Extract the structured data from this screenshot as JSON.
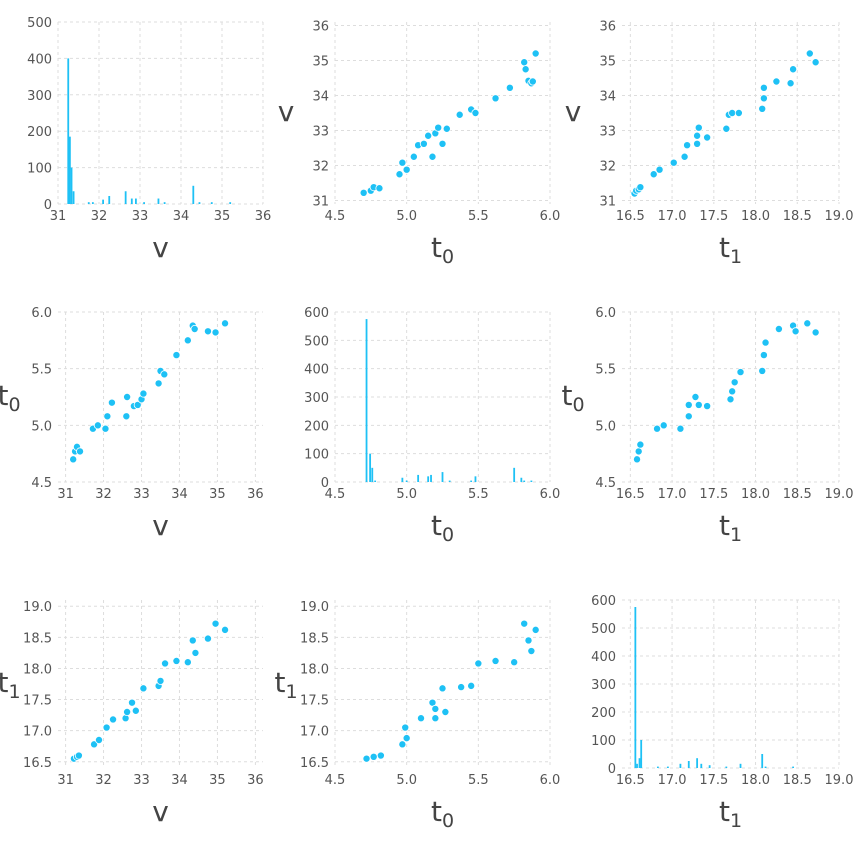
{
  "colors": {
    "series": "#1ec1f5",
    "grid": "#dddddd",
    "tick": "#555555",
    "label": "#444444"
  },
  "chart_data": [
    {
      "type": "bar",
      "row": 0,
      "col": 0,
      "xlabel": "v",
      "xlabel_sub": "",
      "ylabel": "",
      "ylabel_sub": "",
      "xlim": [
        31,
        36
      ],
      "ylim": [
        0,
        500
      ],
      "xticks": [
        31,
        32,
        33,
        34,
        35,
        36
      ],
      "xtick_labels": [
        "31",
        "32",
        "33",
        "34",
        "35",
        "36"
      ],
      "yticks": [
        0,
        100,
        200,
        300,
        400,
        500
      ],
      "ytick_labels": [
        "0",
        "100",
        "200",
        "300",
        "400",
        "500"
      ],
      "grid": true,
      "x": [
        31.25,
        31.29,
        31.33,
        31.38,
        31.75,
        31.85,
        32.1,
        32.25,
        32.65,
        32.8,
        32.9,
        33.1,
        33.45,
        33.6,
        34.3,
        34.45,
        34.75,
        35.2
      ],
      "values": [
        400,
        185,
        100,
        35,
        5,
        5,
        12,
        22,
        35,
        15,
        15,
        5,
        15,
        5,
        50,
        5,
        5,
        5
      ]
    },
    {
      "type": "scatter",
      "row": 0,
      "col": 1,
      "xlabel": "t",
      "xlabel_sub": "0",
      "ylabel": "v",
      "ylabel_sub": "",
      "xlim": [
        4.5,
        6.0
      ],
      "ylim": [
        30.9,
        36.1
      ],
      "xticks": [
        4.5,
        5.0,
        5.5,
        6.0
      ],
      "xtick_labels": [
        "4.5",
        "5.0",
        "5.5",
        "6.0"
      ],
      "yticks": [
        31,
        32,
        33,
        34,
        35,
        36
      ],
      "ytick_labels": [
        "31",
        "32",
        "33",
        "34",
        "35",
        "36"
      ],
      "grid": true,
      "x": [
        4.7,
        4.75,
        4.77,
        4.81,
        4.95,
        4.97,
        5.0,
        5.05,
        5.08,
        5.12,
        5.15,
        5.18,
        5.2,
        5.22,
        5.25,
        5.28,
        5.37,
        5.45,
        5.48,
        5.62,
        5.72,
        5.82,
        5.83,
        5.85,
        5.87,
        5.88,
        5.9
      ],
      "y": [
        31.22,
        31.28,
        31.38,
        31.35,
        31.75,
        32.08,
        31.88,
        32.25,
        32.58,
        32.62,
        32.85,
        32.25,
        32.92,
        33.08,
        32.62,
        33.05,
        33.45,
        33.6,
        33.5,
        33.92,
        34.22,
        34.95,
        34.75,
        34.42,
        34.35,
        34.4,
        35.2
      ]
    },
    {
      "type": "scatter",
      "row": 0,
      "col": 2,
      "xlabel": "t",
      "xlabel_sub": "1",
      "ylabel": "v",
      "ylabel_sub": "",
      "xlim": [
        16.4,
        19.0
      ],
      "ylim": [
        30.9,
        36.1
      ],
      "xticks": [
        16.5,
        17.0,
        17.5,
        18.0,
        18.5,
        19.0
      ],
      "xtick_labels": [
        "16.5",
        "17.0",
        "17.5",
        "18.0",
        "18.5",
        "19.0"
      ],
      "yticks": [
        31,
        32,
        33,
        34,
        35,
        36
      ],
      "ytick_labels": [
        "31",
        "32",
        "33",
        "34",
        "35",
        "36"
      ],
      "grid": true,
      "x": [
        16.55,
        16.57,
        16.6,
        16.62,
        16.78,
        16.85,
        17.02,
        17.15,
        17.18,
        17.3,
        17.3,
        17.32,
        17.42,
        17.65,
        17.68,
        17.72,
        17.8,
        18.08,
        18.1,
        18.1,
        18.25,
        18.42,
        18.45,
        18.65,
        18.72
      ],
      "y": [
        31.2,
        31.28,
        31.32,
        31.38,
        31.75,
        31.88,
        32.08,
        32.25,
        32.58,
        32.62,
        32.85,
        33.08,
        32.8,
        33.05,
        33.45,
        33.5,
        33.5,
        33.62,
        33.92,
        34.22,
        34.4,
        34.35,
        34.75,
        35.2,
        34.95
      ]
    },
    {
      "type": "scatter",
      "row": 1,
      "col": 0,
      "xlabel": "v",
      "xlabel_sub": "",
      "ylabel": "t",
      "ylabel_sub": "0",
      "xlim": [
        30.8,
        36.2
      ],
      "ylim": [
        4.5,
        6.0
      ],
      "xticks": [
        31,
        32,
        33,
        34,
        35,
        36
      ],
      "xtick_labels": [
        "31",
        "32",
        "33",
        "34",
        "35",
        "36"
      ],
      "yticks": [
        4.5,
        5.0,
        5.5,
        6.0
      ],
      "ytick_labels": [
        "4.5",
        "5.0",
        "5.5",
        "6.0"
      ],
      "grid": true,
      "x": [
        31.2,
        31.25,
        31.3,
        31.38,
        31.72,
        31.85,
        32.05,
        32.1,
        32.22,
        32.62,
        32.6,
        32.8,
        32.9,
        33.0,
        33.05,
        33.45,
        33.5,
        33.6,
        33.92,
        34.22,
        34.35,
        34.4,
        34.75,
        34.95,
        35.2
      ],
      "y": [
        4.7,
        4.77,
        4.81,
        4.77,
        4.97,
        5.0,
        4.97,
        5.08,
        5.2,
        5.25,
        5.08,
        5.17,
        5.18,
        5.23,
        5.28,
        5.37,
        5.48,
        5.45,
        5.62,
        5.75,
        5.88,
        5.85,
        5.83,
        5.82,
        5.9
      ]
    },
    {
      "type": "bar",
      "row": 1,
      "col": 1,
      "xlabel": "t",
      "xlabel_sub": "0",
      "ylabel": "",
      "ylabel_sub": "",
      "xlim": [
        4.5,
        6.0
      ],
      "ylim": [
        0,
        600
      ],
      "xticks": [
        4.5,
        5.0,
        5.5,
        6.0
      ],
      "xtick_labels": [
        "4.5",
        "5.0",
        "5.5",
        "6.0"
      ],
      "yticks": [
        0,
        100,
        200,
        300,
        400,
        500,
        600
      ],
      "ytick_labels": [
        "0",
        "100",
        "200",
        "300",
        "400",
        "500",
        "600"
      ],
      "grid": true,
      "x": [
        4.72,
        4.745,
        4.76,
        4.78,
        4.97,
        5.0,
        5.08,
        5.15,
        5.17,
        5.25,
        5.3,
        5.45,
        5.48,
        5.75,
        5.8,
        5.82,
        5.87
      ],
      "values": [
        575,
        100,
        50,
        5,
        15,
        5,
        25,
        20,
        25,
        35,
        5,
        5,
        20,
        50,
        15,
        5,
        5
      ]
    },
    {
      "type": "scatter",
      "row": 1,
      "col": 2,
      "xlabel": "t",
      "xlabel_sub": "1",
      "ylabel": "t",
      "ylabel_sub": "0",
      "xlim": [
        16.4,
        19.0
      ],
      "ylim": [
        4.5,
        6.0
      ],
      "xticks": [
        16.5,
        17.0,
        17.5,
        18.0,
        18.5,
        19.0
      ],
      "xtick_labels": [
        "16.5",
        "17.0",
        "17.5",
        "18.0",
        "18.5",
        "19.0"
      ],
      "yticks": [
        4.5,
        5.0,
        5.5,
        6.0
      ],
      "ytick_labels": [
        "4.5",
        "5.0",
        "5.5",
        "6.0"
      ],
      "grid": true,
      "x": [
        16.58,
        16.6,
        16.62,
        16.82,
        16.9,
        17.1,
        17.2,
        17.2,
        17.28,
        17.32,
        17.42,
        17.7,
        17.72,
        17.75,
        17.82,
        18.08,
        18.1,
        18.12,
        18.28,
        18.45,
        18.48,
        18.62,
        18.72
      ],
      "y": [
        4.7,
        4.77,
        4.83,
        4.97,
        5.0,
        4.97,
        5.08,
        5.18,
        5.25,
        5.18,
        5.17,
        5.23,
        5.3,
        5.38,
        5.47,
        5.48,
        5.62,
        5.73,
        5.85,
        5.88,
        5.83,
        5.9,
        5.82
      ]
    },
    {
      "type": "scatter",
      "row": 2,
      "col": 0,
      "xlabel": "v",
      "xlabel_sub": "",
      "ylabel": "t",
      "ylabel_sub": "1",
      "xlim": [
        30.8,
        36.2
      ],
      "ylim": [
        16.4,
        19.1
      ],
      "xticks": [
        31,
        32,
        33,
        34,
        35,
        36
      ],
      "xtick_labels": [
        "31",
        "32",
        "33",
        "34",
        "35",
        "36"
      ],
      "yticks": [
        16.5,
        17.0,
        17.5,
        18.0,
        18.5,
        19.0
      ],
      "ytick_labels": [
        "16.5",
        "17.0",
        "17.5",
        "18.0",
        "18.5",
        "19.0"
      ],
      "grid": true,
      "x": [
        31.22,
        31.3,
        31.35,
        31.75,
        31.88,
        32.08,
        32.25,
        32.58,
        32.62,
        32.75,
        32.85,
        33.05,
        33.45,
        33.5,
        33.62,
        33.92,
        34.22,
        34.35,
        34.42,
        34.75,
        34.95,
        35.2
      ],
      "y": [
        16.55,
        16.58,
        16.6,
        16.78,
        16.85,
        17.05,
        17.18,
        17.2,
        17.3,
        17.45,
        17.32,
        17.68,
        17.72,
        17.8,
        18.08,
        18.12,
        18.1,
        18.45,
        18.25,
        18.48,
        18.72,
        18.62
      ]
    },
    {
      "type": "scatter",
      "row": 2,
      "col": 1,
      "xlabel": "t",
      "xlabel_sub": "0",
      "ylabel": "t",
      "ylabel_sub": "1",
      "xlim": [
        4.5,
        6.0
      ],
      "ylim": [
        16.4,
        19.1
      ],
      "xticks": [
        4.5,
        5.0,
        5.5,
        6.0
      ],
      "xtick_labels": [
        "4.5",
        "5.0",
        "5.5",
        "6.0"
      ],
      "yticks": [
        16.5,
        17.0,
        17.5,
        18.0,
        18.5,
        19.0
      ],
      "ytick_labels": [
        "16.5",
        "17.0",
        "17.5",
        "18.0",
        "18.5",
        "19.0"
      ],
      "grid": true,
      "x": [
        4.72,
        4.77,
        4.82,
        4.97,
        4.99,
        5.0,
        5.1,
        5.18,
        5.2,
        5.2,
        5.25,
        5.27,
        5.38,
        5.45,
        5.5,
        5.62,
        5.75,
        5.82,
        5.85,
        5.87,
        5.9
      ],
      "y": [
        16.55,
        16.58,
        16.6,
        16.78,
        17.05,
        16.88,
        17.2,
        17.45,
        17.35,
        17.2,
        17.68,
        17.3,
        17.7,
        17.72,
        18.08,
        18.12,
        18.1,
        18.72,
        18.45,
        18.28,
        18.62
      ]
    },
    {
      "type": "bar",
      "row": 2,
      "col": 2,
      "xlabel": "t",
      "xlabel_sub": "1",
      "ylabel": "",
      "ylabel_sub": "",
      "xlim": [
        16.4,
        19.0
      ],
      "ylim": [
        0,
        600
      ],
      "xticks": [
        16.5,
        17.0,
        17.5,
        18.0,
        18.5,
        19.0
      ],
      "xtick_labels": [
        "16.5",
        "17.0",
        "17.5",
        "18.0",
        "18.5",
        "19.0"
      ],
      "yticks": [
        0,
        100,
        200,
        300,
        400,
        500,
        600
      ],
      "ytick_labels": [
        "0",
        "100",
        "200",
        "300",
        "400",
        "500",
        "600"
      ],
      "grid": true,
      "x": [
        16.56,
        16.58,
        16.61,
        16.63,
        16.83,
        16.95,
        17.1,
        17.2,
        17.3,
        17.35,
        17.45,
        17.65,
        17.82,
        18.08,
        18.12,
        18.45
      ],
      "values": [
        575,
        15,
        35,
        100,
        5,
        5,
        15,
        25,
        35,
        15,
        10,
        5,
        15,
        50,
        5,
        5
      ]
    }
  ]
}
